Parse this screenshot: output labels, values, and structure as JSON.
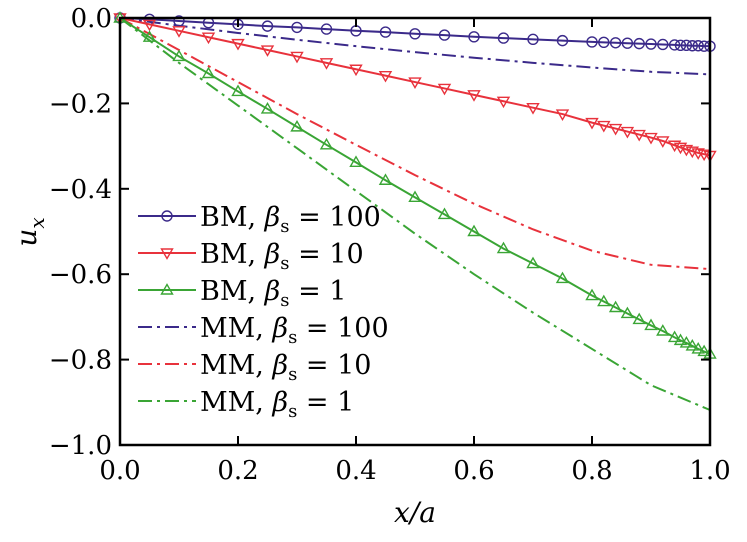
{
  "chart_data": {
    "type": "line",
    "xlabel": "x/a",
    "ylabel": "u_x",
    "xlim": [
      0.0,
      1.0
    ],
    "ylim": [
      -1.0,
      0.0
    ],
    "x_ticks": [
      "0.0",
      "0.2",
      "0.4",
      "0.6",
      "0.8",
      "1.0"
    ],
    "y_ticks": [
      "0.0",
      "−0.2",
      "−0.4",
      "−0.6",
      "−0.8",
      "−1.0"
    ],
    "grid": false,
    "legend_position": "left",
    "series": [
      {
        "name": "BM, βs = 100",
        "color": "#3b2a8a",
        "style": "solid",
        "marker": "circle",
        "x": [
          0,
          0.05,
          0.1,
          0.15,
          0.2,
          0.25,
          0.3,
          0.35,
          0.4,
          0.45,
          0.5,
          0.55,
          0.6,
          0.65,
          0.7,
          0.75,
          0.8,
          0.82,
          0.84,
          0.86,
          0.88,
          0.9,
          0.92,
          0.94,
          0.95,
          0.96,
          0.97,
          0.98,
          0.99,
          1.0
        ],
        "y": [
          0,
          -0.003,
          -0.007,
          -0.011,
          -0.015,
          -0.019,
          -0.022,
          -0.026,
          -0.03,
          -0.033,
          -0.037,
          -0.04,
          -0.044,
          -0.047,
          -0.05,
          -0.053,
          -0.056,
          -0.057,
          -0.058,
          -0.059,
          -0.06,
          -0.061,
          -0.062,
          -0.063,
          -0.064,
          -0.064,
          -0.065,
          -0.065,
          -0.066,
          -0.066
        ]
      },
      {
        "name": "BM, βs = 10",
        "color": "#e8323c",
        "style": "solid",
        "marker": "triangle-down",
        "x": [
          0,
          0.05,
          0.1,
          0.15,
          0.2,
          0.25,
          0.3,
          0.35,
          0.4,
          0.45,
          0.5,
          0.55,
          0.6,
          0.65,
          0.7,
          0.75,
          0.8,
          0.82,
          0.84,
          0.86,
          0.88,
          0.9,
          0.92,
          0.94,
          0.95,
          0.96,
          0.97,
          0.98,
          0.99,
          1.0
        ],
        "y": [
          0,
          -0.015,
          -0.03,
          -0.045,
          -0.06,
          -0.075,
          -0.09,
          -0.105,
          -0.12,
          -0.135,
          -0.15,
          -0.165,
          -0.18,
          -0.195,
          -0.21,
          -0.225,
          -0.245,
          -0.252,
          -0.259,
          -0.266,
          -0.273,
          -0.28,
          -0.288,
          -0.298,
          -0.303,
          -0.308,
          -0.312,
          -0.316,
          -0.319,
          -0.322
        ]
      },
      {
        "name": "BM, βs = 1",
        "color": "#3aa535",
        "style": "solid",
        "marker": "triangle-up",
        "x": [
          0,
          0.05,
          0.1,
          0.15,
          0.2,
          0.25,
          0.3,
          0.35,
          0.4,
          0.45,
          0.5,
          0.55,
          0.6,
          0.65,
          0.7,
          0.75,
          0.8,
          0.82,
          0.84,
          0.86,
          0.88,
          0.9,
          0.92,
          0.94,
          0.95,
          0.96,
          0.97,
          0.98,
          0.99,
          1.0
        ],
        "y": [
          0,
          -0.045,
          -0.09,
          -0.13,
          -0.172,
          -0.213,
          -0.255,
          -0.297,
          -0.338,
          -0.38,
          -0.42,
          -0.46,
          -0.5,
          -0.54,
          -0.575,
          -0.61,
          -0.65,
          -0.664,
          -0.678,
          -0.692,
          -0.706,
          -0.72,
          -0.733,
          -0.748,
          -0.755,
          -0.761,
          -0.768,
          -0.775,
          -0.781,
          -0.787
        ]
      },
      {
        "name": "MM, βs = 100",
        "color": "#3b2a8a",
        "style": "dashdot",
        "marker": "none",
        "x": [
          0,
          0.1,
          0.2,
          0.3,
          0.4,
          0.5,
          0.6,
          0.7,
          0.8,
          0.9,
          1.0
        ],
        "y": [
          0,
          -0.018,
          -0.035,
          -0.051,
          -0.066,
          -0.08,
          -0.093,
          -0.105,
          -0.116,
          -0.126,
          -0.132
        ]
      },
      {
        "name": "MM, βs = 10",
        "color": "#e8323c",
        "style": "dashdot",
        "marker": "none",
        "x": [
          0,
          0.1,
          0.2,
          0.3,
          0.4,
          0.5,
          0.6,
          0.7,
          0.8,
          0.9,
          1.0
        ],
        "y": [
          0,
          -0.075,
          -0.15,
          -0.225,
          -0.297,
          -0.368,
          -0.435,
          -0.495,
          -0.545,
          -0.578,
          -0.588
        ]
      },
      {
        "name": "MM, βs = 1",
        "color": "#3aa535",
        "style": "dashdot",
        "marker": "none",
        "x": [
          0,
          0.1,
          0.2,
          0.3,
          0.4,
          0.5,
          0.6,
          0.7,
          0.8,
          0.9,
          1.0
        ],
        "y": [
          0,
          -0.105,
          -0.205,
          -0.305,
          -0.405,
          -0.505,
          -0.6,
          -0.69,
          -0.775,
          -0.86,
          -0.918
        ]
      }
    ],
    "legend": [
      {
        "method": "BM",
        "beta_value": "100"
      },
      {
        "method": "BM",
        "beta_value": "10"
      },
      {
        "method": "BM",
        "beta_value": "1"
      },
      {
        "method": "MM",
        "beta_value": "100"
      },
      {
        "method": "MM",
        "beta_value": "10"
      },
      {
        "method": "MM",
        "beta_value": "1"
      }
    ]
  }
}
